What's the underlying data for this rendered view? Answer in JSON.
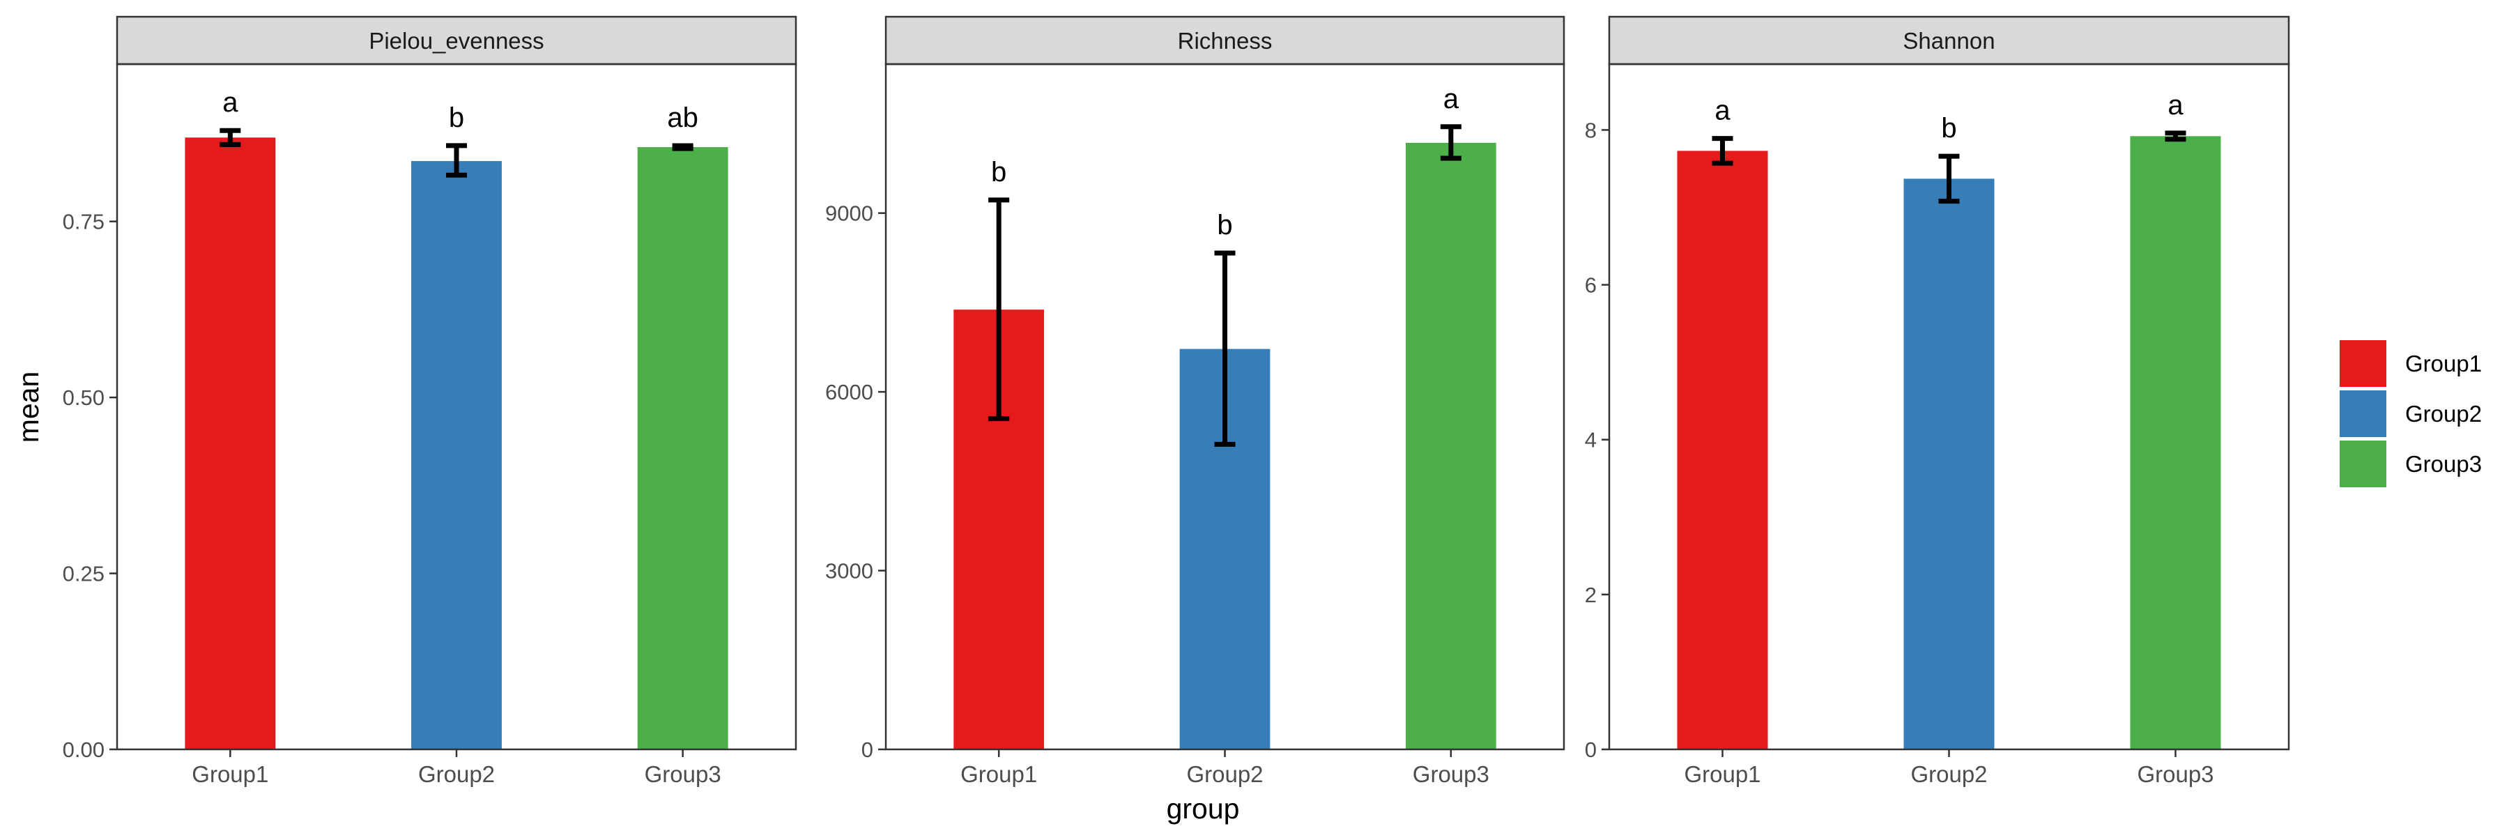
{
  "chart_data": {
    "type": "bar",
    "ylabel": "mean",
    "xlabel": "group",
    "categories": [
      "Group1",
      "Group2",
      "Group3"
    ],
    "legend": {
      "placement": "right",
      "entries": [
        {
          "name": "Group1",
          "color": "#E41A1C"
        },
        {
          "name": "Group2",
          "color": "#377EB8"
        },
        {
          "name": "Group3",
          "color": "#4DAF4A"
        }
      ]
    },
    "facets": [
      {
        "strip": "Pielou_evenness",
        "ylim": [
          0,
          0.9735
        ],
        "yticks": [
          0.0,
          0.25,
          0.5,
          0.75
        ],
        "ytick_labels": [
          "0.00",
          "0.25",
          "0.50",
          "0.75"
        ],
        "values": [
          0.8692,
          0.8358,
          0.8556
        ],
        "err_low": [
          0.8592,
          0.8158,
          0.8536
        ],
        "err_high": [
          0.8792,
          0.8578,
          0.8576
        ],
        "letters": [
          "a",
          "b",
          "ab"
        ]
      },
      {
        "strip": "Richness",
        "ylim": [
          0,
          11500
        ],
        "yticks": [
          0,
          3000,
          6000,
          9000
        ],
        "ytick_labels": [
          "0",
          "3000",
          "6000",
          "9000"
        ],
        "values": [
          7380,
          6720,
          10180
        ],
        "err_low": [
          5550,
          5120,
          9920
        ],
        "err_high": [
          9220,
          8330,
          10450
        ],
        "letters": [
          "b",
          "b",
          "a"
        ]
      },
      {
        "strip": "Shannon",
        "ylim": [
          0,
          8.85
        ],
        "yticks": [
          0,
          2,
          4,
          6,
          8
        ],
        "ytick_labels": [
          "0",
          "2",
          "4",
          "6",
          "8"
        ],
        "values": [
          7.73,
          7.37,
          7.92
        ],
        "err_low": [
          7.57,
          7.08,
          7.88
        ],
        "err_high": [
          7.89,
          7.66,
          7.96
        ],
        "letters": [
          "a",
          "b",
          "a"
        ]
      }
    ]
  }
}
